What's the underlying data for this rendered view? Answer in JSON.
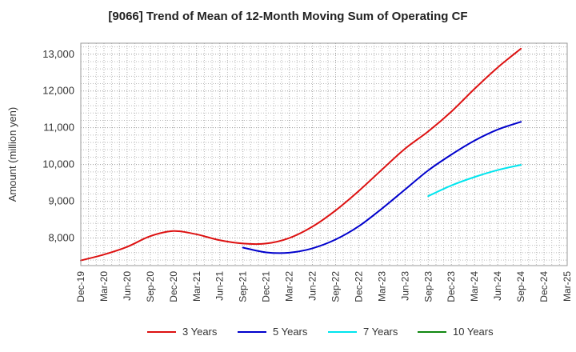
{
  "chart_data": {
    "type": "line",
    "title": "[9066]  Trend of Mean of 12-Month Moving Sum of Operating CF",
    "xlabel": "",
    "ylabel": "Amount (million yen)",
    "x_ticks": [
      "Dec-19",
      "Mar-20",
      "Jun-20",
      "Sep-20",
      "Dec-20",
      "Mar-21",
      "Jun-21",
      "Sep-21",
      "Dec-21",
      "Mar-22",
      "Jun-22",
      "Sep-22",
      "Dec-22",
      "Mar-23",
      "Jun-23",
      "Sep-23",
      "Dec-23",
      "Mar-24",
      "Jun-24",
      "Sep-24",
      "Dec-24",
      "Mar-25"
    ],
    "y_ticks": [
      8000,
      9000,
      10000,
      11000,
      12000,
      13000
    ],
    "y_tick_labels": [
      "8,000",
      "9,000",
      "10,000",
      "11,000",
      "12,000",
      "13,000"
    ],
    "ylim": [
      7250,
      13300
    ],
    "grid": true,
    "legend_position": "bottom",
    "series": [
      {
        "name": "3 Years",
        "color": "#dd1111",
        "start_index": 0,
        "values": [
          7390,
          7550,
          7760,
          8050,
          8190,
          8100,
          7940,
          7850,
          7850,
          8000,
          8310,
          8750,
          9280,
          9860,
          10430,
          10900,
          11440,
          12060,
          12640,
          13150
        ]
      },
      {
        "name": "5 Years",
        "color": "#0000cc",
        "start_index": 7,
        "values": [
          7740,
          7610,
          7600,
          7720,
          7960,
          8320,
          8800,
          9320,
          9840,
          10270,
          10650,
          10950,
          11160
        ]
      },
      {
        "name": "7 Years",
        "color": "#00e5ee",
        "start_index": 15,
        "values": [
          9140,
          9430,
          9660,
          9850,
          9990
        ]
      },
      {
        "name": "10 Years",
        "color": "#118811",
        "start_index": 0,
        "values": []
      }
    ]
  }
}
